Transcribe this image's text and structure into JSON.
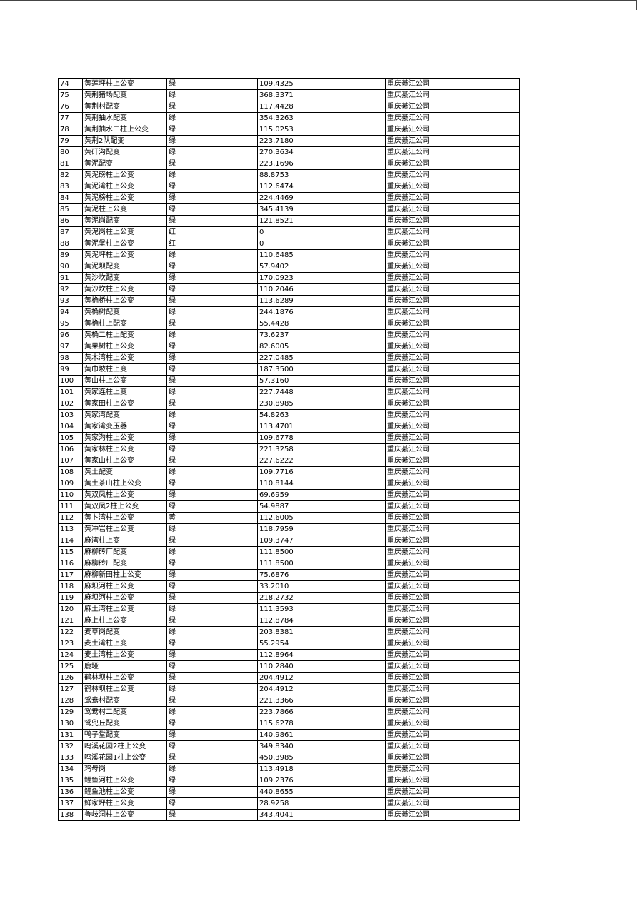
{
  "table": {
    "rows": [
      [
        "74",
        "黄莲坪柱上公变",
        "绿",
        "109.4325",
        "重庆綦江公司"
      ],
      [
        "75",
        "黄荆猪场配变",
        "绿",
        "368.3371",
        "重庆綦江公司"
      ],
      [
        "76",
        "黄荆村配变",
        "绿",
        "117.4428",
        "重庆綦江公司"
      ],
      [
        "77",
        "黄荆抽水配变",
        "绿",
        "354.3263",
        "重庆綦江公司"
      ],
      [
        "78",
        "黄荆抽水二柱上公变",
        "绿",
        "115.0253",
        "重庆綦江公司"
      ],
      [
        "79",
        "黄荆2队配变",
        "绿",
        "223.7180",
        "重庆綦江公司"
      ],
      [
        "80",
        "黄矸沟配变",
        "绿",
        "270.3634",
        "重庆綦江公司"
      ],
      [
        "81",
        "黄泥配变",
        "绿",
        "223.1696",
        "重庆綦江公司"
      ],
      [
        "82",
        "黄泥磅柱上公变",
        "绿",
        "88.8753",
        "重庆綦江公司"
      ],
      [
        "83",
        "黄泥湾柱上公变",
        "绿",
        "112.6474",
        "重庆綦江公司"
      ],
      [
        "84",
        "黄泥榜柱上公变",
        "绿",
        "224.4469",
        "重庆綦江公司"
      ],
      [
        "85",
        "黄泥柱上公变",
        "绿",
        "345.4139",
        "重庆綦江公司"
      ],
      [
        "86",
        "黄泥岗配变",
        "绿",
        "121.8521",
        "重庆綦江公司"
      ],
      [
        "87",
        "黄泥岗柱上公变",
        "红",
        "0",
        "重庆綦江公司"
      ],
      [
        "88",
        "黄泥堡柱上公变",
        "红",
        "0",
        "重庆綦江公司"
      ],
      [
        "89",
        "黄泥坪柱上公变",
        "绿",
        "110.6485",
        "重庆綦江公司"
      ],
      [
        "90",
        "黄泥坝配变",
        "绿",
        "57.9402",
        "重庆綦江公司"
      ],
      [
        "91",
        "黄沙坎配变",
        "绿",
        "170.0923",
        "重庆綦江公司"
      ],
      [
        "92",
        "黄沙坎柱上公变",
        "绿",
        "110.2046",
        "重庆綦江公司"
      ],
      [
        "93",
        "黄桷桥柱上公变",
        "绿",
        "113.6289",
        "重庆綦江公司"
      ],
      [
        "94",
        "黄桷树配变",
        "绿",
        "244.1876",
        "重庆綦江公司"
      ],
      [
        "95",
        "黄桷柱上配变",
        "绿",
        "55.4428",
        "重庆綦江公司"
      ],
      [
        "96",
        "黄桷二柱上配变",
        "绿",
        "73.6237",
        "重庆綦江公司"
      ],
      [
        "97",
        "黄果树柱上公变",
        "绿",
        "82.6005",
        "重庆綦江公司"
      ],
      [
        "98",
        "黄木湾柱上公变",
        "绿",
        "227.0485",
        "重庆綦江公司"
      ],
      [
        "99",
        "黄巾坡柱上变",
        "绿",
        "187.3500",
        "重庆綦江公司"
      ],
      [
        "100",
        "黄山柱上公变",
        "绿",
        "57.3160",
        "重庆綦江公司"
      ],
      [
        "101",
        "黄家连柱上变",
        "绿",
        "227.7448",
        "重庆綦江公司"
      ],
      [
        "102",
        "黄家田柱上公变",
        "绿",
        "230.8985",
        "重庆綦江公司"
      ],
      [
        "103",
        "黄家湾配变",
        "绿",
        "54.8263",
        "重庆綦江公司"
      ],
      [
        "104",
        "黄家湾变压器",
        "绿",
        "113.4701",
        "重庆綦江公司"
      ],
      [
        "105",
        "黄家沟柱上公变",
        "绿",
        "109.6778",
        "重庆綦江公司"
      ],
      [
        "106",
        "黄家林柱上公变",
        "绿",
        "221.3258",
        "重庆綦江公司"
      ],
      [
        "107",
        "黄家山柱上公变",
        "绿",
        "227.6222",
        "重庆綦江公司"
      ],
      [
        "108",
        "黄土配变",
        "绿",
        "109.7716",
        "重庆綦江公司"
      ],
      [
        "109",
        "黄土茶山柱上公变",
        "绿",
        "110.8144",
        "重庆綦江公司"
      ],
      [
        "110",
        "黄双凤柱上公变",
        "绿",
        "69.6959",
        "重庆綦江公司"
      ],
      [
        "111",
        "黄双凤2柱上公变",
        "绿",
        "54.9887",
        "重庆綦江公司"
      ],
      [
        "112",
        "黄卜湾柱上公变",
        "黄",
        "112.6005",
        "重庆綦江公司"
      ],
      [
        "113",
        "黄冲岩柱上公变",
        "绿",
        "118.7959",
        "重庆綦江公司"
      ],
      [
        "114",
        "麻湾柱上变",
        "绿",
        "109.3747",
        "重庆綦江公司"
      ],
      [
        "115",
        "麻柳砖厂配变",
        "绿",
        "111.8500",
        "重庆綦江公司"
      ],
      [
        "116",
        "麻柳砖厂配变",
        "绿",
        "111.8500",
        "重庆綦江公司"
      ],
      [
        "117",
        "麻柳新田柱上公变",
        "绿",
        "75.6876",
        "重庆綦江公司"
      ],
      [
        "118",
        "麻坝河柱上公变",
        "绿",
        "33.2010",
        "重庆綦江公司"
      ],
      [
        "119",
        "麻坝河柱上公变",
        "绿",
        "218.2732",
        "重庆綦江公司"
      ],
      [
        "120",
        "麻土湾柱上公变",
        "绿",
        "111.3593",
        "重庆綦江公司"
      ],
      [
        "121",
        "麻上柱上公变",
        "绿",
        "112.8784",
        "重庆綦江公司"
      ],
      [
        "122",
        "麦草岗配变",
        "绿",
        "203.8381",
        "重庆綦江公司"
      ],
      [
        "123",
        "麦土湾柱上变",
        "绿",
        "55.2954",
        "重庆綦江公司"
      ],
      [
        "124",
        "麦土湾柱上公变",
        "绿",
        "112.8964",
        "重庆綦江公司"
      ],
      [
        "125",
        "鹿垭",
        "绿",
        "110.2840",
        "重庆綦江公司"
      ],
      [
        "126",
        "鹤林坝柱上公变",
        "绿",
        "204.4912",
        "重庆綦江公司"
      ],
      [
        "127",
        "鹤林坝柱上公变",
        "绿",
        "204.4912",
        "重庆綦江公司"
      ],
      [
        "128",
        "鸳鸯村配变",
        "绿",
        "221.3366",
        "重庆綦江公司"
      ],
      [
        "129",
        "鸳鸯村二配变",
        "绿",
        "223.7866",
        "重庆綦江公司"
      ],
      [
        "130",
        "鸳兜丘配变",
        "绿",
        "115.6278",
        "重庆綦江公司"
      ],
      [
        "131",
        "鸭子堂配变",
        "绿",
        "140.9861",
        "重庆綦江公司"
      ],
      [
        "132",
        "鸣溪花园2柱上公变",
        "绿",
        "349.8340",
        "重庆綦江公司"
      ],
      [
        "133",
        "鸣溪花园1柱上公变",
        "绿",
        "450.3985",
        "重庆綦江公司"
      ],
      [
        "134",
        "鸡母岗",
        "绿",
        "113.4918",
        "重庆綦江公司"
      ],
      [
        "135",
        "鲤鱼河柱上公变",
        "绿",
        "109.2376",
        "重庆綦江公司"
      ],
      [
        "136",
        "鲤鱼池柱上公变",
        "绿",
        "440.8655",
        "重庆綦江公司"
      ],
      [
        "137",
        "鲜家坪柱上公变",
        "绿",
        "28.9258",
        "重庆綦江公司"
      ],
      [
        "138",
        "鲁岐洞柱上公变",
        "绿",
        "343.4041",
        "重庆綦江公司"
      ]
    ]
  }
}
